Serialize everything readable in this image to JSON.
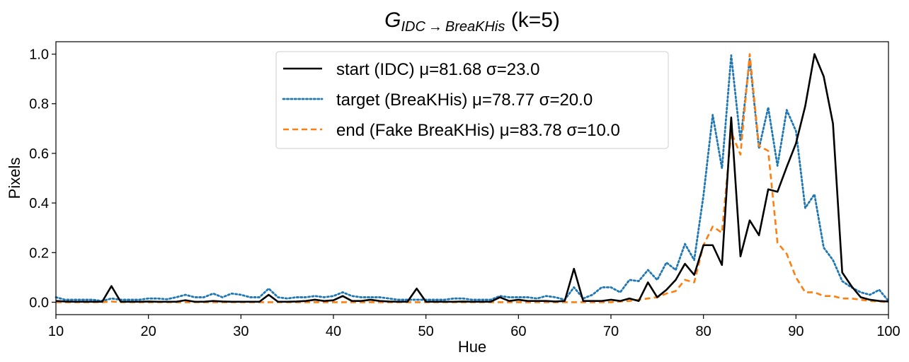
{
  "chart_data": {
    "type": "line",
    "title": {
      "main": "G",
      "subscript": "IDC → BreaKHis",
      "suffix": " (k=5)"
    },
    "xlabel": "Hue",
    "ylabel": "Pixels",
    "xlim": [
      10,
      100
    ],
    "ylim": [
      -0.05,
      1.05
    ],
    "xticks": [
      10,
      20,
      30,
      40,
      50,
      60,
      70,
      80,
      90,
      100
    ],
    "yticks": [
      0.0,
      0.2,
      0.4,
      0.6,
      0.8,
      1.0
    ],
    "ytick_labels": [
      "0.0",
      "0.2",
      "0.4",
      "0.6",
      "0.8",
      "1.0"
    ],
    "legend_position": "top-center",
    "series": [
      {
        "name": "start (IDC) μ=81.68 σ=23.0",
        "color": "#000000",
        "style": "solid",
        "x": [
          10,
          11,
          12,
          13,
          14,
          15,
          16,
          17,
          18,
          19,
          20,
          21,
          22,
          23,
          24,
          25,
          26,
          27,
          28,
          29,
          30,
          31,
          32,
          33,
          34,
          35,
          36,
          37,
          38,
          39,
          40,
          41,
          42,
          43,
          44,
          45,
          46,
          47,
          48,
          49,
          50,
          51,
          52,
          53,
          54,
          55,
          56,
          57,
          58,
          59,
          60,
          61,
          62,
          63,
          64,
          65,
          66,
          67,
          68,
          69,
          70,
          71,
          72,
          73,
          74,
          75,
          76,
          77,
          78,
          79,
          80,
          81,
          82,
          83,
          84,
          85,
          86,
          87,
          88,
          89,
          90,
          91,
          92,
          93,
          94,
          95,
          96,
          97,
          98,
          99,
          100
        ],
        "values": [
          0.005,
          0.003,
          0.002,
          0.002,
          0.002,
          0.002,
          0.065,
          0.002,
          0.002,
          0.002,
          0.003,
          0.002,
          0.002,
          0.002,
          0.008,
          0.002,
          0.002,
          0.005,
          0.003,
          0.002,
          0.002,
          0.002,
          0.002,
          0.03,
          0.002,
          0.002,
          0.003,
          0.005,
          0.01,
          0.005,
          0.008,
          0.025,
          0.005,
          0.005,
          0.01,
          0.005,
          0.003,
          0.002,
          0.002,
          0.055,
          0.002,
          0.002,
          0.002,
          0.002,
          0.003,
          0.002,
          0.002,
          0.002,
          0.02,
          0.005,
          0.01,
          0.005,
          0.005,
          0.005,
          0.003,
          0.005,
          0.135,
          0.005,
          0.005,
          0.005,
          0.01,
          0.005,
          0.015,
          0.005,
          0.08,
          0.02,
          0.05,
          0.09,
          0.155,
          0.11,
          0.23,
          0.23,
          0.15,
          0.745,
          0.185,
          0.33,
          0.27,
          0.455,
          0.445,
          0.545,
          0.64,
          0.79,
          1.0,
          0.91,
          0.72,
          0.12,
          0.065,
          0.02,
          0.01,
          0.005,
          0.003
        ]
      },
      {
        "name": "target (BreaKHis) μ=78.77 σ=20.0",
        "color": "#1f77b4",
        "style": "dotted",
        "x": [
          10,
          11,
          12,
          13,
          14,
          15,
          16,
          17,
          18,
          19,
          20,
          21,
          22,
          23,
          24,
          25,
          26,
          27,
          28,
          29,
          30,
          31,
          32,
          33,
          34,
          35,
          36,
          37,
          38,
          39,
          40,
          41,
          42,
          43,
          44,
          45,
          46,
          47,
          48,
          49,
          50,
          51,
          52,
          53,
          54,
          55,
          56,
          57,
          58,
          59,
          60,
          61,
          62,
          63,
          64,
          65,
          66,
          67,
          68,
          69,
          70,
          71,
          72,
          73,
          74,
          75,
          76,
          77,
          78,
          79,
          80,
          81,
          82,
          83,
          84,
          85,
          86,
          87,
          88,
          89,
          90,
          91,
          92,
          93,
          94,
          95,
          96,
          97,
          98,
          99,
          100
        ],
        "values": [
          0.02,
          0.01,
          0.01,
          0.01,
          0.01,
          0.005,
          0.015,
          0.01,
          0.01,
          0.01,
          0.015,
          0.015,
          0.012,
          0.02,
          0.03,
          0.02,
          0.02,
          0.035,
          0.02,
          0.035,
          0.03,
          0.02,
          0.02,
          0.055,
          0.02,
          0.015,
          0.02,
          0.02,
          0.025,
          0.02,
          0.025,
          0.04,
          0.025,
          0.02,
          0.02,
          0.02,
          0.015,
          0.01,
          0.01,
          0.01,
          0.01,
          0.01,
          0.01,
          0.015,
          0.015,
          0.01,
          0.01,
          0.01,
          0.025,
          0.02,
          0.02,
          0.02,
          0.015,
          0.025,
          0.02,
          0.01,
          0.06,
          0.015,
          0.03,
          0.06,
          0.06,
          0.04,
          0.09,
          0.085,
          0.13,
          0.09,
          0.16,
          0.13,
          0.235,
          0.17,
          0.43,
          0.755,
          0.54,
          0.995,
          0.65,
          0.98,
          0.62,
          0.785,
          0.55,
          0.775,
          0.69,
          0.38,
          0.435,
          0.22,
          0.17,
          0.085,
          0.06,
          0.04,
          0.03,
          0.05,
          0.005
        ]
      },
      {
        "name": "end (Fake BreaKHis) μ=83.78 σ=10.0",
        "color": "#ff7f0e",
        "style": "dashed",
        "x": [
          10,
          11,
          12,
          13,
          14,
          15,
          16,
          17,
          18,
          19,
          20,
          21,
          22,
          23,
          24,
          25,
          26,
          27,
          28,
          29,
          30,
          31,
          32,
          33,
          34,
          35,
          36,
          37,
          38,
          39,
          40,
          41,
          42,
          43,
          44,
          45,
          46,
          47,
          48,
          49,
          50,
          51,
          52,
          53,
          54,
          55,
          56,
          57,
          58,
          59,
          60,
          61,
          62,
          63,
          64,
          65,
          66,
          67,
          68,
          69,
          70,
          71,
          72,
          73,
          74,
          75,
          76,
          77,
          78,
          79,
          80,
          81,
          82,
          83,
          84,
          85,
          86,
          87,
          88,
          89,
          90,
          91,
          92,
          93,
          94,
          95,
          96,
          97,
          98,
          99,
          100
        ],
        "values": [
          0.0,
          0.0,
          0.0,
          0.0,
          0.0,
          0.0,
          0.003,
          0.0,
          0.0,
          0.0,
          0.0,
          0.0,
          0.0,
          0.0,
          0.0,
          0.0,
          0.0,
          0.0,
          0.0,
          0.0,
          0.0,
          0.0,
          0.0,
          0.0,
          0.0,
          0.0,
          0.0,
          0.0,
          0.0,
          0.0,
          0.0,
          0.0,
          0.0,
          0.0,
          0.0,
          0.0,
          0.0,
          0.0,
          0.0,
          0.0,
          0.0,
          0.0,
          0.0,
          0.0,
          0.0,
          0.0,
          0.0,
          0.0,
          0.0,
          0.0,
          0.0,
          0.0,
          0.0,
          0.0,
          0.0,
          0.0,
          0.0,
          0.0,
          0.0,
          0.0,
          0.0,
          0.003,
          0.005,
          0.01,
          0.015,
          0.02,
          0.035,
          0.045,
          0.09,
          0.08,
          0.23,
          0.305,
          0.28,
          0.685,
          0.595,
          1.0,
          0.63,
          0.61,
          0.24,
          0.195,
          0.1,
          0.04,
          0.04,
          0.025,
          0.025,
          0.015,
          0.015,
          0.01,
          0.005,
          0.003,
          0.0
        ]
      }
    ]
  }
}
